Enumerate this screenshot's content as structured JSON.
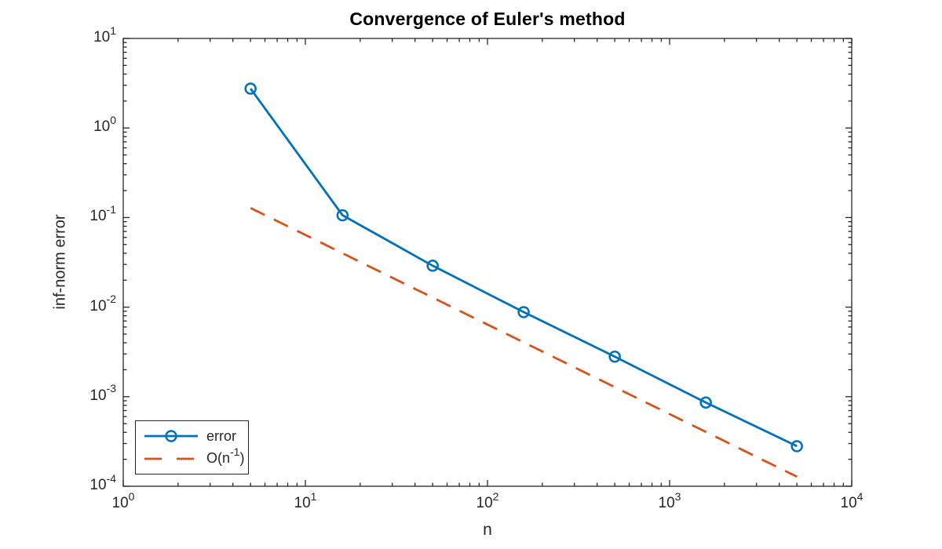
{
  "chart_data": {
    "type": "line",
    "title": "Convergence of Euler's method",
    "xlabel": "n",
    "ylabel": "inf-norm error",
    "x_scale": "log10",
    "y_scale": "log10",
    "xlim": [
      1,
      10000
    ],
    "ylim": [
      0.0001,
      10
    ],
    "grid": false,
    "tick_base": "10",
    "x_tick_exponents": [
      0,
      1,
      2,
      3,
      4
    ],
    "y_tick_exponents": [
      -4,
      -3,
      -2,
      -1,
      0,
      1
    ],
    "axis_color": "#262626",
    "legend": {
      "position": "southwest",
      "entries": [
        {
          "label": "error"
        },
        {
          "label_prefix": "O(n",
          "label_exponent": "-1",
          "label_suffix": ")"
        }
      ]
    },
    "series": [
      {
        "name": "error",
        "color": "#0072BD",
        "line_style": "solid",
        "line_width": 2.8,
        "marker": "circle",
        "x": [
          5,
          16,
          50,
          158,
          500,
          1581,
          5000
        ],
        "y": [
          2.75,
          0.106,
          0.029,
          0.0088,
          0.0028,
          0.00086,
          0.00028
        ]
      },
      {
        "name": "O(n^-1)",
        "color": "#D95319",
        "line_style": "dashed",
        "line_width": 2.8,
        "marker": "none",
        "x": [
          5,
          5000
        ],
        "y": [
          0.128,
          0.000128
        ]
      }
    ]
  }
}
